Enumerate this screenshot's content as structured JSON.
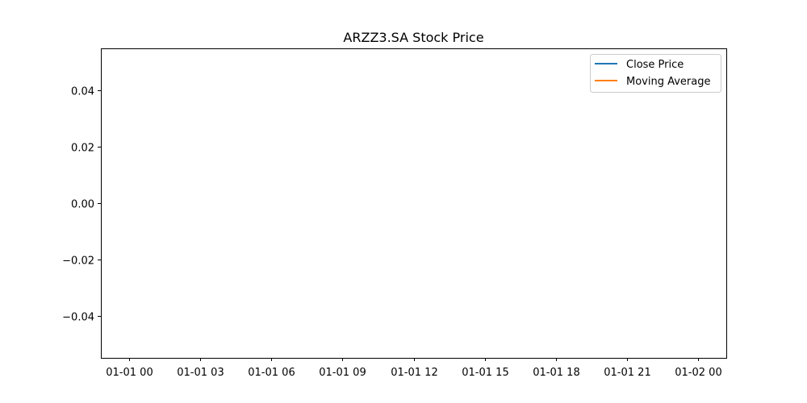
{
  "chart_data": {
    "type": "line",
    "title": "ARZZ3.SA Stock Price",
    "xlabel": "",
    "ylabel": "",
    "x_ticks": [
      "01-01 00",
      "01-01 03",
      "01-01 06",
      "01-01 09",
      "01-01 12",
      "01-01 15",
      "01-01 18",
      "01-01 21",
      "01-02 00"
    ],
    "y_ticks": [
      "−0.04",
      "−0.02",
      "0.00",
      "0.02",
      "0.04"
    ],
    "y_tick_values": [
      -0.04,
      -0.02,
      0.0,
      0.02,
      0.04
    ],
    "xlim": [
      "01-01 00",
      "01-02 00"
    ],
    "ylim": [
      -0.055,
      0.055
    ],
    "grid": false,
    "legend_position": "upper right",
    "series": [
      {
        "name": "Close Price",
        "color": "#1f77b4",
        "values": []
      },
      {
        "name": "Moving Average",
        "color": "#ff7f0e",
        "values": []
      }
    ]
  }
}
